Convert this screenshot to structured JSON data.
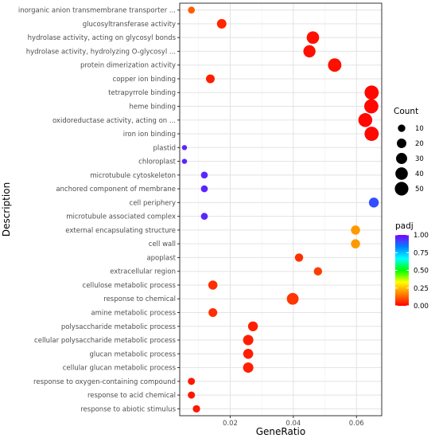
{
  "chart_data": {
    "type": "scatter",
    "xlabel": "GeneRatio",
    "ylabel": "Description",
    "xlim": [
      0.004,
      0.068
    ],
    "xticks": [
      0.02,
      0.04,
      0.06
    ],
    "xtick_labels": [
      "0.02",
      "0.04",
      "0.06"
    ],
    "grid": true,
    "legend_position": "right",
    "size_legend": {
      "title": "Count",
      "values": [
        10,
        20,
        30,
        40,
        50
      ]
    },
    "color_legend": {
      "title": "padj",
      "ticks": [
        1.0,
        0.75,
        0.5,
        0.25,
        0.0
      ],
      "tick_labels": [
        "1.00",
        "0.75",
        "0.50",
        "0.25",
        "0.00"
      ],
      "colors": [
        "#ff0000",
        "#ff8000",
        "#ffff00",
        "#00ff00",
        "#00ffff",
        "#0080ff",
        "#8000ff"
      ]
    },
    "points": [
      {
        "term": "inorganic anion transmembrane transporter ...",
        "x": 0.0077,
        "count": 8,
        "padj": 0.12
      },
      {
        "term": "glucosyltransferase activity",
        "x": 0.0173,
        "count": 20,
        "padj": 0.05
      },
      {
        "term": "hydrolase activity, acting on glycosyl bonds",
        "x": 0.0462,
        "count": 40,
        "padj": 0.02
      },
      {
        "term": "hydrolase activity, hydrolyzing O-glycosyl ...",
        "x": 0.0451,
        "count": 38,
        "padj": 0.02
      },
      {
        "term": "protein dimerization activity",
        "x": 0.0531,
        "count": 48,
        "padj": 0.02
      },
      {
        "term": "copper ion binding",
        "x": 0.0137,
        "count": 16,
        "padj": 0.04
      },
      {
        "term": "tetrapyrrole binding",
        "x": 0.0648,
        "count": 55,
        "padj": 0.01
      },
      {
        "term": "heme binding",
        "x": 0.0647,
        "count": 55,
        "padj": 0.01
      },
      {
        "term": "oxidoreductase activity, acting on ...",
        "x": 0.0628,
        "count": 52,
        "padj": 0.01
      },
      {
        "term": "iron ion binding",
        "x": 0.0648,
        "count": 55,
        "padj": 0.01
      },
      {
        "term": "plastid",
        "x": 0.0055,
        "count": 3,
        "padj": 0.95
      },
      {
        "term": "chloroplast",
        "x": 0.0055,
        "count": 3,
        "padj": 0.95
      },
      {
        "term": "microtubule cytoskeleton",
        "x": 0.0118,
        "count": 8,
        "padj": 0.95
      },
      {
        "term": "anchored component of membrane",
        "x": 0.0118,
        "count": 8,
        "padj": 0.95
      },
      {
        "term": "cell periphery",
        "x": 0.0655,
        "count": 22,
        "padj": 0.9
      },
      {
        "term": "microtubule associated complex",
        "x": 0.0118,
        "count": 8,
        "padj": 0.95
      },
      {
        "term": "external encapsulating structure",
        "x": 0.0597,
        "count": 18,
        "padj": 0.2
      },
      {
        "term": "cell wall",
        "x": 0.0597,
        "count": 18,
        "padj": 0.2
      },
      {
        "term": "apoplast",
        "x": 0.0418,
        "count": 14,
        "padj": 0.06
      },
      {
        "term": "extracellular region",
        "x": 0.0478,
        "count": 14,
        "padj": 0.08
      },
      {
        "term": "cellulose metabolic process",
        "x": 0.0145,
        "count": 18,
        "padj": 0.06
      },
      {
        "term": "response to chemical",
        "x": 0.0398,
        "count": 35,
        "padj": 0.07
      },
      {
        "term": "amine metabolic process",
        "x": 0.0145,
        "count": 16,
        "padj": 0.06
      },
      {
        "term": "polysaccharide metabolic process",
        "x": 0.0272,
        "count": 22,
        "padj": 0.04
      },
      {
        "term": "cellular polysaccharide metabolic process",
        "x": 0.0257,
        "count": 25,
        "padj": 0.04
      },
      {
        "term": "glucan metabolic process",
        "x": 0.0257,
        "count": 23,
        "padj": 0.04
      },
      {
        "term": "cellular glucan metabolic process",
        "x": 0.0257,
        "count": 25,
        "padj": 0.04
      },
      {
        "term": "response to oxygen-containing compound",
        "x": 0.0077,
        "count": 9,
        "padj": 0.03
      },
      {
        "term": "response to acid chemical",
        "x": 0.0077,
        "count": 9,
        "padj": 0.03
      },
      {
        "term": "response to abiotic stimulus",
        "x": 0.0093,
        "count": 10,
        "padj": 0.03
      }
    ]
  }
}
